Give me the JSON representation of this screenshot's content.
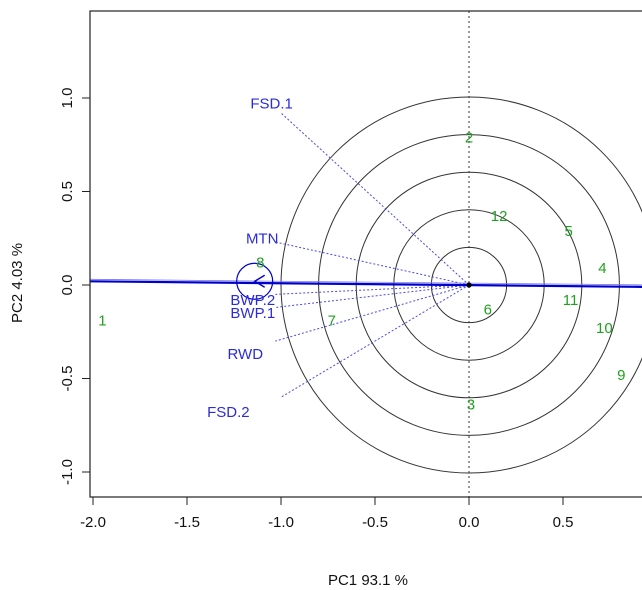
{
  "chart_data": {
    "type": "scatter",
    "subtype": "GGE biplot (which-won-where / ranking with concentric circles)",
    "xlabel": "PC1 93.1 %",
    "ylabel": "PC2 4.03 %",
    "xlim": [
      -2.05,
      0.93
    ],
    "ylim": [
      -1.16,
      1.46
    ],
    "x_ticks": [
      {
        "value": -2.0,
        "label": "-2.0"
      },
      {
        "value": -1.5,
        "label": "-1.5"
      },
      {
        "value": -1.0,
        "label": "-1.0"
      },
      {
        "value": -0.5,
        "label": "-0.5"
      },
      {
        "value": 0.0,
        "label": "0.0"
      },
      {
        "value": 0.5,
        "label": "0.5"
      }
    ],
    "y_ticks": [
      {
        "value": -1.0,
        "label": "-1.0"
      },
      {
        "value": -0.5,
        "label": "-0.5"
      },
      {
        "value": 0.0,
        "label": "0.0"
      },
      {
        "value": 0.5,
        "label": "0.5"
      },
      {
        "value": 1.0,
        "label": "1.0"
      }
    ],
    "genotypes": [
      {
        "label": "1",
        "x": -1.95,
        "y": -0.19
      },
      {
        "label": "2",
        "x": 0.0,
        "y": 0.79
      },
      {
        "label": "3",
        "x": 0.01,
        "y": -0.64
      },
      {
        "label": "4",
        "x": 0.71,
        "y": 0.09
      },
      {
        "label": "5",
        "x": 0.53,
        "y": 0.29
      },
      {
        "label": "6",
        "x": 0.1,
        "y": -0.13
      },
      {
        "label": "7",
        "x": -0.73,
        "y": -0.19
      },
      {
        "label": "8",
        "x": -1.11,
        "y": 0.12
      },
      {
        "label": "9",
        "x": 0.81,
        "y": -0.48
      },
      {
        "label": "10",
        "x": 0.72,
        "y": -0.23
      },
      {
        "label": "11",
        "x": 0.54,
        "y": -0.08
      },
      {
        "label": "12",
        "x": 0.16,
        "y": 0.37
      }
    ],
    "traits": [
      {
        "label": "FSD.1",
        "x": -1.05,
        "y": 0.97,
        "vx": -1.0,
        "vy": 0.92
      },
      {
        "label": "MTN",
        "x": -1.1,
        "y": 0.25,
        "vx": -1.03,
        "vy": 0.23
      },
      {
        "label": "BWP.2",
        "x": -1.15,
        "y": -0.08,
        "vx": -1.03,
        "vy": -0.05
      },
      {
        "label": "BWP.1",
        "x": -1.15,
        "y": -0.15,
        "vx": -1.03,
        "vy": -0.12
      },
      {
        "label": "RWD",
        "x": -1.19,
        "y": -0.37,
        "vx": -1.03,
        "vy": -0.3
      },
      {
        "label": "FSD.2",
        "x": -1.28,
        "y": -0.68,
        "vx": -1.0,
        "vy": -0.6
      }
    ],
    "ideal_point": {
      "x": -1.14,
      "y": 0.02
    },
    "aec_line": {
      "from": [
        -2.05,
        0.02
      ],
      "to": [
        0.93,
        -0.01
      ]
    },
    "concentric_circle_radii": [
      0.2,
      0.4,
      0.6,
      0.8,
      1.0
    ],
    "circle_center": {
      "x": 0.0,
      "y": 0.0
    },
    "colors": {
      "genotype": "#22a022",
      "trait": "#2b2bdd",
      "vector": "#4a4ae6",
      "axis_line": "#0000cc",
      "circle": "#333333",
      "frame": "#222222"
    }
  }
}
